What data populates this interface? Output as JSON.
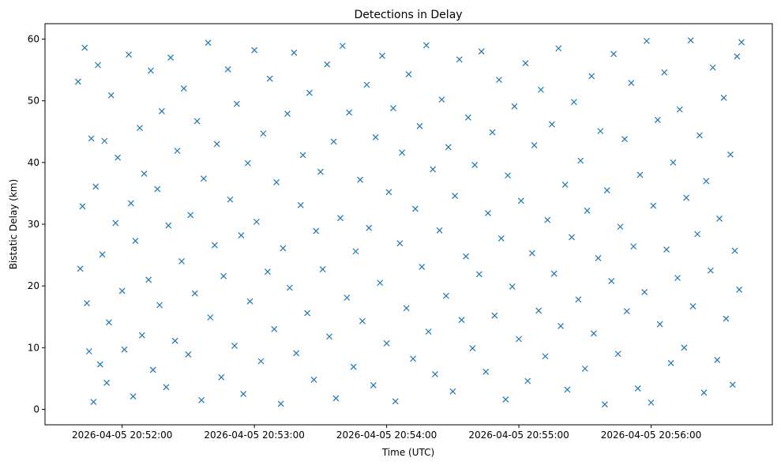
{
  "chart_data": {
    "type": "scatter",
    "title": "Detections in Delay",
    "xlabel": "Time (UTC)",
    "ylabel": "Bistatic Delay (km)",
    "date": "2026-04-05",
    "xlim": [
      "20:51:25",
      "20:56:55"
    ],
    "ylim": [
      -2.5,
      62.5
    ],
    "x_ticks": [
      "2026-04-05 20:52:00",
      "2026-04-05 20:53:00",
      "2026-04-05 20:54:00",
      "2026-04-05 20:55:00",
      "2026-04-05 20:56:00"
    ],
    "x_tick_times": [
      "20:52:00",
      "20:53:00",
      "20:54:00",
      "20:55:00",
      "20:56:00"
    ],
    "y_ticks": [
      0,
      10,
      20,
      30,
      40,
      50,
      60
    ],
    "grid": false,
    "marker": "x",
    "color": "#1f77b4",
    "series": [
      {
        "name": "detections",
        "points": [
          [
            "20:51:40",
            53.1
          ],
          [
            "20:51:41",
            22.8
          ],
          [
            "20:51:42",
            32.9
          ],
          [
            "20:51:43",
            58.6
          ],
          [
            "20:51:44",
            17.2
          ],
          [
            "20:51:45",
            9.4
          ],
          [
            "20:51:46",
            43.9
          ],
          [
            "20:51:47",
            1.2
          ],
          [
            "20:51:48",
            36.1
          ],
          [
            "20:51:49",
            55.8
          ],
          [
            "20:51:50",
            7.3
          ],
          [
            "20:51:51",
            25.1
          ],
          [
            "20:51:52",
            43.5
          ],
          [
            "20:51:53",
            4.3
          ],
          [
            "20:51:54",
            14.1
          ],
          [
            "20:51:55",
            50.9
          ],
          [
            "20:51:57",
            30.2
          ],
          [
            "20:51:58",
            40.8
          ],
          [
            "20:52:00",
            19.2
          ],
          [
            "20:52:01",
            9.7
          ],
          [
            "20:52:03",
            57.5
          ],
          [
            "20:52:04",
            33.4
          ],
          [
            "20:52:05",
            2.1
          ],
          [
            "20:52:06",
            27.3
          ],
          [
            "20:52:08",
            45.6
          ],
          [
            "20:52:09",
            12.0
          ],
          [
            "20:52:10",
            38.2
          ],
          [
            "20:52:12",
            21.0
          ],
          [
            "20:52:13",
            54.9
          ],
          [
            "20:52:14",
            6.4
          ],
          [
            "20:52:16",
            35.7
          ],
          [
            "20:52:17",
            16.9
          ],
          [
            "20:52:18",
            48.3
          ],
          [
            "20:52:20",
            3.6
          ],
          [
            "20:52:21",
            29.8
          ],
          [
            "20:52:22",
            57.0
          ],
          [
            "20:52:24",
            11.1
          ],
          [
            "20:52:25",
            41.9
          ],
          [
            "20:52:27",
            24.0
          ],
          [
            "20:52:28",
            52.0
          ],
          [
            "20:52:30",
            8.9
          ],
          [
            "20:52:31",
            31.5
          ],
          [
            "20:52:33",
            18.8
          ],
          [
            "20:52:34",
            46.7
          ],
          [
            "20:52:36",
            1.5
          ],
          [
            "20:52:37",
            37.4
          ],
          [
            "20:52:39",
            59.4
          ],
          [
            "20:52:40",
            14.9
          ],
          [
            "20:52:42",
            26.6
          ],
          [
            "20:52:43",
            43.0
          ],
          [
            "20:52:45",
            5.2
          ],
          [
            "20:52:46",
            21.6
          ],
          [
            "20:52:48",
            55.1
          ],
          [
            "20:52:49",
            34.0
          ],
          [
            "20:52:51",
            10.3
          ],
          [
            "20:52:52",
            49.5
          ],
          [
            "20:52:54",
            28.2
          ],
          [
            "20:52:55",
            2.5
          ],
          [
            "20:52:57",
            39.9
          ],
          [
            "20:52:58",
            17.5
          ],
          [
            "20:53:00",
            58.2
          ],
          [
            "20:53:01",
            30.4
          ],
          [
            "20:53:03",
            7.8
          ],
          [
            "20:53:04",
            44.7
          ],
          [
            "20:53:06",
            22.3
          ],
          [
            "20:53:07",
            53.6
          ],
          [
            "20:53:09",
            13.0
          ],
          [
            "20:53:10",
            36.8
          ],
          [
            "20:53:12",
            0.9
          ],
          [
            "20:53:13",
            26.1
          ],
          [
            "20:53:15",
            47.9
          ],
          [
            "20:53:16",
            19.7
          ],
          [
            "20:53:18",
            57.8
          ],
          [
            "20:53:19",
            9.1
          ],
          [
            "20:53:21",
            33.1
          ],
          [
            "20:53:22",
            41.2
          ],
          [
            "20:53:24",
            15.6
          ],
          [
            "20:53:25",
            51.3
          ],
          [
            "20:53:27",
            4.8
          ],
          [
            "20:53:28",
            28.9
          ],
          [
            "20:53:30",
            38.5
          ],
          [
            "20:53:31",
            22.7
          ],
          [
            "20:53:33",
            55.9
          ],
          [
            "20:53:34",
            11.8
          ],
          [
            "20:53:36",
            43.4
          ],
          [
            "20:53:37",
            1.8
          ],
          [
            "20:53:39",
            31.0
          ],
          [
            "20:53:40",
            58.9
          ],
          [
            "20:53:42",
            18.1
          ],
          [
            "20:53:43",
            48.1
          ],
          [
            "20:53:45",
            6.9
          ],
          [
            "20:53:46",
            25.6
          ],
          [
            "20:53:48",
            37.2
          ],
          [
            "20:53:49",
            14.3
          ],
          [
            "20:53:51",
            52.6
          ],
          [
            "20:53:52",
            29.4
          ],
          [
            "20:53:54",
            3.9
          ],
          [
            "20:53:55",
            44.1
          ],
          [
            "20:53:57",
            20.5
          ],
          [
            "20:53:58",
            57.3
          ],
          [
            "20:54:00",
            10.7
          ],
          [
            "20:54:01",
            35.2
          ],
          [
            "20:54:03",
            48.8
          ],
          [
            "20:54:04",
            1.3
          ],
          [
            "20:54:06",
            26.9
          ],
          [
            "20:54:07",
            41.6
          ],
          [
            "20:54:09",
            16.4
          ],
          [
            "20:54:10",
            54.3
          ],
          [
            "20:54:12",
            8.2
          ],
          [
            "20:54:13",
            32.5
          ],
          [
            "20:54:15",
            45.9
          ],
          [
            "20:54:16",
            23.1
          ],
          [
            "20:54:18",
            59.0
          ],
          [
            "20:54:19",
            12.6
          ],
          [
            "20:54:21",
            38.9
          ],
          [
            "20:54:22",
            5.7
          ],
          [
            "20:54:24",
            29.0
          ],
          [
            "20:54:25",
            50.2
          ],
          [
            "20:54:27",
            18.4
          ],
          [
            "20:54:28",
            42.5
          ],
          [
            "20:54:30",
            2.9
          ],
          [
            "20:54:31",
            34.6
          ],
          [
            "20:54:33",
            56.7
          ],
          [
            "20:54:34",
            14.5
          ],
          [
            "20:54:36",
            24.8
          ],
          [
            "20:54:37",
            47.3
          ],
          [
            "20:54:39",
            9.9
          ],
          [
            "20:54:40",
            39.6
          ],
          [
            "20:54:42",
            21.9
          ],
          [
            "20:54:43",
            58.0
          ],
          [
            "20:54:45",
            6.1
          ],
          [
            "20:54:46",
            31.8
          ],
          [
            "20:54:48",
            44.9
          ],
          [
            "20:54:49",
            15.2
          ],
          [
            "20:54:51",
            53.4
          ],
          [
            "20:54:52",
            27.7
          ],
          [
            "20:54:54",
            1.6
          ],
          [
            "20:54:55",
            37.9
          ],
          [
            "20:54:57",
            19.9
          ],
          [
            "20:54:58",
            49.1
          ],
          [
            "20:55:00",
            11.4
          ],
          [
            "20:55:01",
            33.8
          ],
          [
            "20:55:03",
            56.1
          ],
          [
            "20:55:04",
            4.6
          ],
          [
            "20:55:06",
            25.3
          ],
          [
            "20:55:07",
            42.8
          ],
          [
            "20:55:09",
            16.0
          ],
          [
            "20:55:10",
            51.8
          ],
          [
            "20:55:12",
            8.6
          ],
          [
            "20:55:13",
            30.7
          ],
          [
            "20:55:15",
            46.2
          ],
          [
            "20:55:16",
            22.0
          ],
          [
            "20:55:18",
            58.5
          ],
          [
            "20:55:19",
            13.5
          ],
          [
            "20:55:21",
            36.4
          ],
          [
            "20:55:22",
            3.2
          ],
          [
            "20:55:24",
            27.9
          ],
          [
            "20:55:25",
            49.8
          ],
          [
            "20:55:27",
            17.8
          ],
          [
            "20:55:28",
            40.3
          ],
          [
            "20:55:30",
            6.6
          ],
          [
            "20:55:31",
            32.2
          ],
          [
            "20:55:33",
            54.0
          ],
          [
            "20:55:34",
            12.3
          ],
          [
            "20:55:36",
            24.5
          ],
          [
            "20:55:37",
            45.1
          ],
          [
            "20:55:39",
            0.8
          ],
          [
            "20:55:40",
            35.5
          ],
          [
            "20:55:42",
            20.8
          ],
          [
            "20:55:43",
            57.6
          ],
          [
            "20:55:45",
            9.0
          ],
          [
            "20:55:46",
            29.6
          ],
          [
            "20:55:48",
            43.8
          ],
          [
            "20:55:49",
            15.9
          ],
          [
            "20:55:51",
            52.9
          ],
          [
            "20:55:52",
            26.4
          ],
          [
            "20:55:54",
            3.4
          ],
          [
            "20:55:55",
            38.0
          ],
          [
            "20:55:57",
            19.0
          ],
          [
            "20:55:58",
            59.7
          ],
          [
            "20:56:00",
            1.1
          ],
          [
            "20:56:01",
            33.0
          ],
          [
            "20:56:03",
            46.9
          ],
          [
            "20:56:04",
            13.8
          ],
          [
            "20:56:06",
            54.6
          ],
          [
            "20:56:07",
            25.9
          ],
          [
            "20:56:09",
            7.5
          ],
          [
            "20:56:10",
            40.0
          ],
          [
            "20:56:12",
            21.3
          ],
          [
            "20:56:13",
            48.6
          ],
          [
            "20:56:15",
            10.0
          ],
          [
            "20:56:16",
            34.3
          ],
          [
            "20:56:18",
            59.8
          ],
          [
            "20:56:19",
            16.7
          ],
          [
            "20:56:21",
            28.4
          ],
          [
            "20:56:22",
            44.4
          ],
          [
            "20:56:24",
            2.7
          ],
          [
            "20:56:25",
            37.0
          ],
          [
            "20:56:27",
            22.5
          ],
          [
            "20:56:28",
            55.4
          ],
          [
            "20:56:30",
            8.0
          ],
          [
            "20:56:31",
            30.9
          ],
          [
            "20:56:33",
            50.5
          ],
          [
            "20:56:34",
            14.7
          ],
          [
            "20:56:36",
            41.3
          ],
          [
            "20:56:37",
            4.0
          ],
          [
            "20:56:38",
            25.7
          ],
          [
            "20:56:39",
            57.2
          ],
          [
            "20:56:40",
            19.4
          ],
          [
            "20:56:41",
            59.5
          ]
        ]
      }
    ]
  }
}
